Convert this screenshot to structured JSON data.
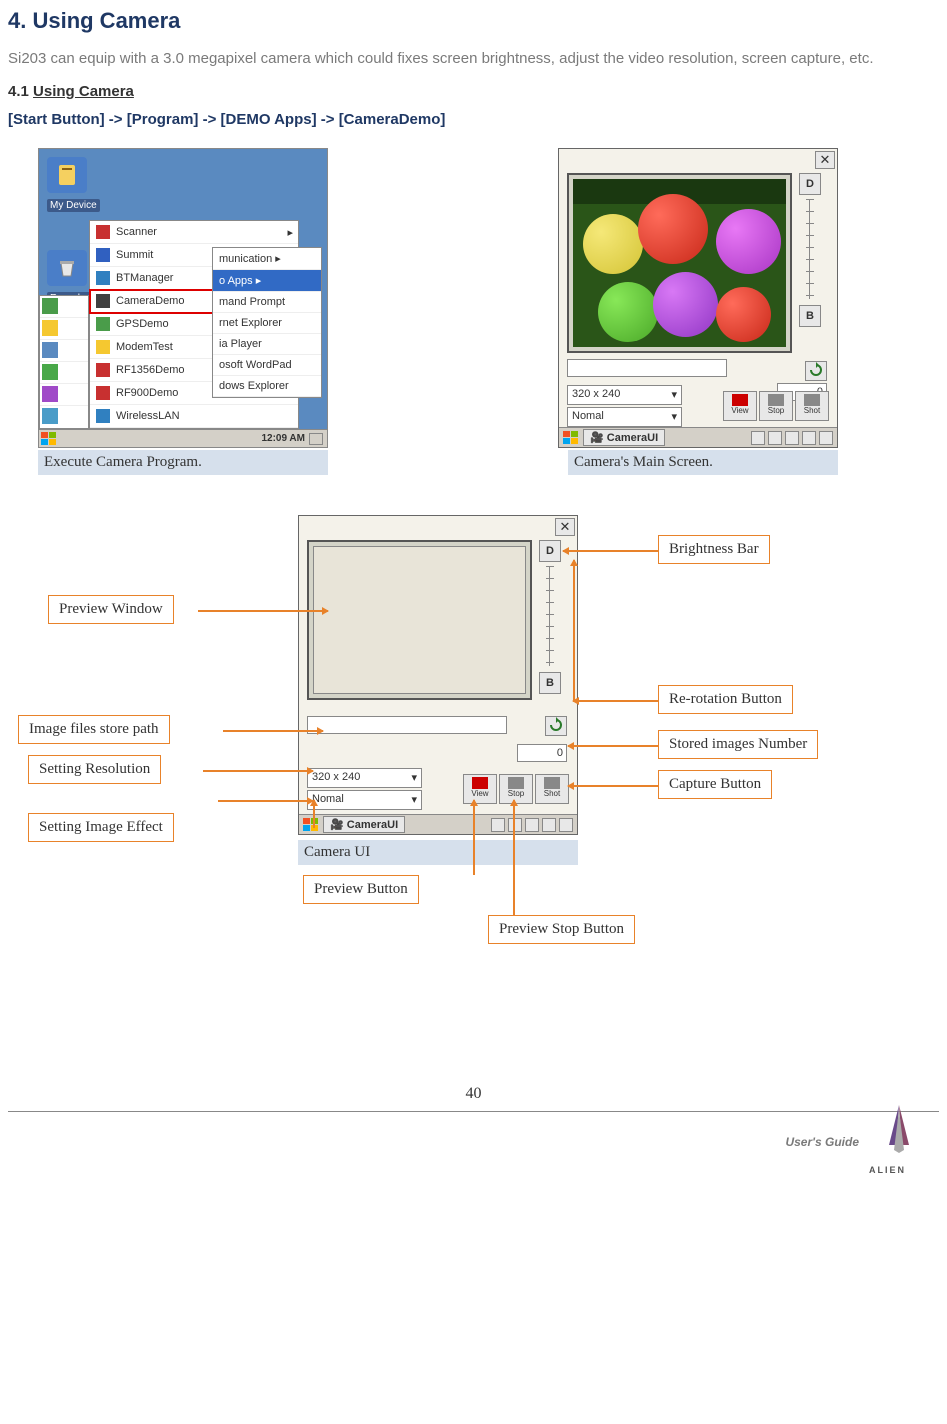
{
  "title": "4. Using Camera",
  "intro": "Si203 can equip with a 3.0 megapixel camera which could fixes screen brightness, adjust the video resolution, screen capture, etc.",
  "subsection_num": "4.1 ",
  "subsection_title": "Using Camera",
  "nav_path": "[Start Button] -> [Program] -> [DEMO Apps] -> [CameraDemo]",
  "shot1": {
    "caption": "Execute Camera Program.",
    "desktop_labels": [
      "My Device",
      "Recycle Bin"
    ],
    "menu_items": [
      {
        "label": "Scanner",
        "arrow": "▸"
      },
      {
        "label": "Summit",
        "arrow": "▸"
      },
      {
        "label": "BTManager",
        "arrow": ""
      },
      {
        "label": "CameraDemo",
        "arrow": ""
      },
      {
        "label": "GPSDemo",
        "arrow": ""
      },
      {
        "label": "ModemTest",
        "arrow": ""
      },
      {
        "label": "RF1356Demo",
        "arrow": ""
      },
      {
        "label": "RF900Demo",
        "arrow": ""
      },
      {
        "label": "WirelessLAN",
        "arrow": ""
      }
    ],
    "sub_items": [
      "munication",
      "o Apps",
      "mand Prompt",
      "rnet Explorer",
      "ia Player",
      "osoft WordPad",
      "dows Explorer"
    ],
    "clock": "12:09 AM"
  },
  "shot2": {
    "caption": "Camera's Main Screen.",
    "resolution": "320 x 240",
    "effect": "Nomal",
    "count": "0",
    "btns": {
      "view": "View",
      "stop": "Stop",
      "shot": "Shot"
    },
    "d_btn": "D",
    "b_btn": "B",
    "taskbar_app": "CameraUI"
  },
  "diagram": {
    "caption": "Camera UI",
    "labels": {
      "brightness": "Brightness Bar",
      "preview_win": "Preview Window",
      "rerotation": "Re-rotation Button",
      "store_path": "Image files store path",
      "stored_num": "Stored images Number",
      "resolution": "Setting Resolution",
      "capture": "Capture Button",
      "effect": "Setting Image Effect",
      "preview_btn": "Preview Button",
      "stop_btn": "Preview Stop Button"
    }
  },
  "footer": {
    "page": "40",
    "guide": "User's Guide",
    "brand": "ALIEN"
  },
  "colors": {
    "title": "#1f3864",
    "label_border": "#e8822a",
    "caption_bg": "#d6e0ec"
  }
}
